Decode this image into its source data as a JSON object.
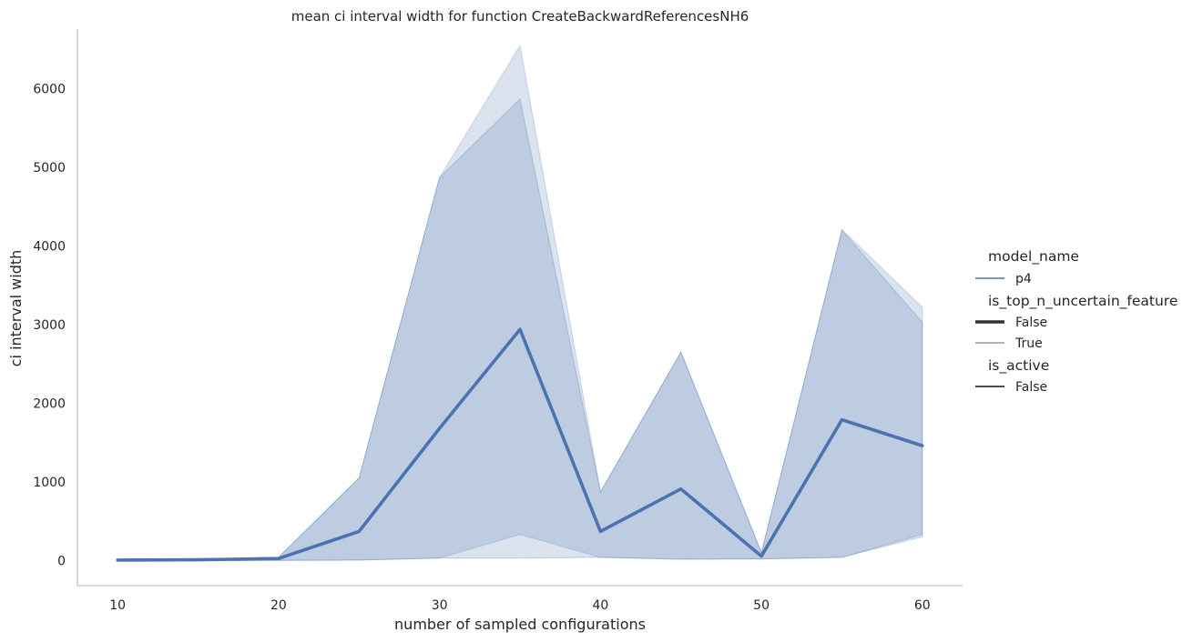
{
  "chart_data": {
    "type": "line",
    "title": "mean ci interval width for function CreateBackwardReferencesNH6",
    "xlabel": "number of sampled configurations",
    "ylabel": "ci interval width",
    "xlim": [
      7.5,
      62.5
    ],
    "ylim": [
      -320,
      6760
    ],
    "xticks": [
      10,
      20,
      30,
      40,
      50,
      60
    ],
    "yticks": [
      0,
      1000,
      2000,
      3000,
      4000,
      5000,
      6000
    ],
    "grid": false,
    "legend_placement": "right",
    "x": [
      10,
      15,
      20,
      25,
      30,
      35,
      40,
      45,
      50,
      55,
      60
    ],
    "series": [
      {
        "name": "p4",
        "color": "#4c72b0",
        "values": [
          5,
          8,
          25,
          370,
          1680,
          2940,
          370,
          910,
          55,
          1790,
          1460
        ],
        "ci_lower": [
          0,
          0,
          0,
          5,
          30,
          30,
          40,
          15,
          20,
          40,
          330
        ],
        "ci_upper": [
          10,
          15,
          40,
          1050,
          4870,
          5870,
          870,
          2650,
          100,
          4200,
          3030
        ],
        "outer_lower": [
          0,
          0,
          0,
          5,
          30,
          330,
          40,
          15,
          20,
          40,
          300
        ],
        "outer_upper": [
          10,
          15,
          40,
          1050,
          4870,
          6550,
          870,
          2650,
          100,
          4210,
          3220
        ]
      }
    ]
  },
  "legend": {
    "groups": [
      {
        "title": "model_name",
        "items": [
          {
            "label": "p4",
            "style": "thin-blue"
          }
        ]
      },
      {
        "title": "is_top_n_uncertain_feature",
        "items": [
          {
            "label": "False",
            "style": "thick-dark"
          },
          {
            "label": "True",
            "style": "thin-dark"
          }
        ]
      },
      {
        "title": "is_active",
        "items": [
          {
            "label": "False",
            "style": "medium-dark"
          }
        ]
      }
    ]
  }
}
